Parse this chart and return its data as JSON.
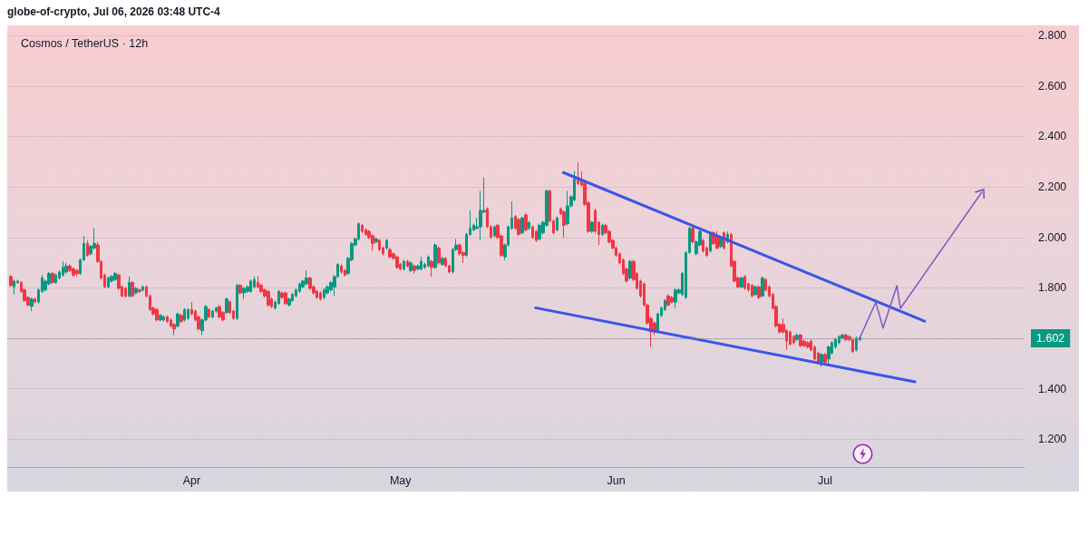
{
  "chart_data": {
    "type": "candlestick",
    "title": "Cosmos / TetherUS · 12h",
    "annotations": [
      "globe-of-crypto, Jul 06, 2026 03:48 UTC-4"
    ],
    "xlim": [
      "2026-03-05T12:00",
      "2026-07-29T16:00"
    ],
    "xticks": [
      {
        "value": "2026-04-01",
        "label": "Apr"
      },
      {
        "value": "2026-05-01",
        "label": "May"
      },
      {
        "value": "2026-06-01",
        "label": "Jun"
      },
      {
        "value": "2026-07-01",
        "label": "Jul"
      }
    ],
    "ylim": [
      1.09,
      2.84
    ],
    "yticks": [
      {
        "value": 1.2,
        "label": "1.200"
      },
      {
        "value": 1.4,
        "label": "1.400"
      },
      {
        "value": 1.6,
        "label": null
      },
      {
        "value": 1.8,
        "label": "1.800"
      },
      {
        "value": 2.0,
        "label": "2.000"
      },
      {
        "value": 2.2,
        "label": "2.200"
      },
      {
        "value": 2.4,
        "label": "2.400"
      },
      {
        "value": 2.6,
        "label": "2.600"
      },
      {
        "value": 2.8,
        "label": "2.800"
      }
    ],
    "grid": "y",
    "ref_lines": [
      {
        "axis": "y",
        "value": 1.602,
        "label": "1.602",
        "color": "#8a8a92",
        "line_style": "dotted"
      }
    ],
    "series": [
      {
        "type": "candlestick",
        "colors": [
          "#f23645",
          "#089981",
          "#089981",
          "#f23645",
          "#f23645",
          "#f23645",
          "#089981",
          "#f23645",
          "#089981",
          "#089981",
          "#089981",
          "#089981",
          "#f23645",
          "#089981",
          "#089981",
          "#089981",
          "#089981",
          "#f23645",
          "#f23645",
          "#f23645",
          "#089981",
          "#089981",
          "#f23645",
          "#089981",
          "#089981",
          "#f23645",
          "#f23645",
          "#f23645",
          "#089981",
          "#089981",
          "#089981",
          "#f23645",
          "#f23645",
          "#f23645",
          "#089981",
          "#f23645",
          "#089981",
          "#f23645",
          "#089981",
          "#f23645",
          "#f23645",
          "#f23645",
          "#f23645",
          "#089981",
          "#089981",
          "#f23645",
          "#f23645",
          "#f23645",
          "#089981",
          "#f23645",
          "#089981",
          "#089981",
          "#f23645",
          "#f23645",
          "#f23645",
          "#089981",
          "#089981",
          "#f23645",
          "#089981",
          "#089981",
          "#f23645",
          "#f23645",
          "#089981",
          "#f23645",
          "#f23645",
          "#089981",
          "#f23645",
          "#089981",
          "#089981",
          "#089981",
          "#089981",
          "#f23645",
          "#f23645",
          "#f23645",
          "#f23645",
          "#f23645",
          "#089981",
          "#089981",
          "#f23645",
          "#f23645",
          "#089981",
          "#089981",
          "#089981",
          "#089981",
          "#089981",
          "#089981",
          "#f23645",
          "#f23645",
          "#f23645",
          "#f23645",
          "#089981",
          "#089981",
          "#089981",
          "#089981",
          "#089981",
          "#f23645",
          "#f23645",
          "#089981",
          "#089981",
          "#089981",
          "#089981",
          "#f23645",
          "#f23645",
          "#f23645",
          "#f23645",
          "#089981",
          "#f23645",
          "#f23645",
          "#089981",
          "#f23645",
          "#f23645",
          "#f23645",
          "#f23645",
          "#089981",
          "#f23645",
          "#089981",
          "#f23645",
          "#089981",
          "#089981",
          "#089981",
          "#089981",
          "#f23645",
          "#089981",
          "#f23645",
          "#089981",
          "#f23645",
          "#f23645",
          "#089981",
          "#089981",
          "#f23645",
          "#f23645",
          "#089981",
          "#089981",
          "#089981",
          "#089981",
          "#089981",
          "#089981",
          "#f23645",
          "#f23645",
          "#089981",
          "#f23645",
          "#f23645",
          "#089981",
          "#089981",
          "#089981",
          "#f23645",
          "#f23645",
          "#089981",
          "#f23645",
          "#089981",
          "#f23645",
          "#f23645",
          "#089981",
          "#089981",
          "#089981",
          "#f23645",
          "#f23645",
          "#089981",
          "#f23645",
          "#f23645",
          "#089981",
          "#089981",
          "#089981",
          "#f23645",
          "#f23645",
          "#f23645",
          "#f23645",
          "#089981",
          "#f23645",
          "#f23645",
          "#089981",
          "#f23645",
          "#f23645",
          "#f23645",
          "#f23645",
          "#f23645",
          "#f23645",
          "#f23645",
          "#089981",
          "#f23645",
          "#f23645",
          "#f23645",
          "#f23645",
          "#f23645",
          "#f23645",
          "#f23645",
          "#089981",
          "#089981",
          "#089981",
          "#f23645",
          "#f23645",
          "#089981",
          "#089981",
          "#089981",
          "#089981",
          "#089981",
          "#f23645",
          "#089981",
          "#089981",
          "#f23645",
          "#f23645",
          "#089981",
          "#f23645",
          "#f23645",
          "#089981",
          "#f23645",
          "#089981",
          "#f23645",
          "#f23645",
          "#f23645",
          "#089981",
          "#f23645",
          "#f23645",
          "#f23645",
          "#089981",
          "#f23645",
          "#089981",
          "#f23645",
          "#f23645",
          "#f23645",
          "#f23645",
          "#f23645",
          "#f23645",
          "#f23645",
          "#f23645",
          "#f23645",
          "#089981",
          "#f23645",
          "#f23645",
          "#f23645",
          "#f23645",
          "#f23645",
          "#f23645",
          "#089981",
          "#f23645",
          "#089981",
          "#089981",
          "#089981",
          "#089981",
          "#089981",
          "#f23645",
          "#f23645",
          "#f23645",
          "#089981",
          "#089981"
        ],
        "x": [
          "2026-03-06T00:00",
          "2026-03-06T12:00",
          "2026-03-07T00:00",
          "2026-03-07T12:00",
          "2026-03-08T00:00",
          "2026-03-08T12:00",
          "2026-03-09T00:00",
          "2026-03-09T12:00",
          "2026-03-10T00:00",
          "2026-03-10T12:00",
          "2026-03-11T00:00",
          "2026-03-11T12:00",
          "2026-03-12T00:00",
          "2026-03-12T12:00",
          "2026-03-13T00:00",
          "2026-03-13T12:00",
          "2026-03-14T00:00",
          "2026-03-14T12:00",
          "2026-03-15T00:00",
          "2026-03-15T12:00",
          "2026-03-16T00:00",
          "2026-03-16T12:00",
          "2026-03-17T00:00",
          "2026-03-17T12:00",
          "2026-03-18T00:00",
          "2026-03-18T12:00",
          "2026-03-19T00:00",
          "2026-03-19T12:00",
          "2026-03-20T00:00",
          "2026-03-20T12:00",
          "2026-03-21T00:00",
          "2026-03-21T12:00",
          "2026-03-22T00:00",
          "2026-03-22T12:00",
          "2026-03-23T00:00",
          "2026-03-23T12:00",
          "2026-03-24T00:00",
          "2026-03-24T12:00",
          "2026-03-25T00:00",
          "2026-03-25T12:00",
          "2026-03-26T00:00",
          "2026-03-26T12:00",
          "2026-03-27T00:00",
          "2026-03-27T12:00",
          "2026-03-28T00:00",
          "2026-03-28T12:00",
          "2026-03-29T00:00",
          "2026-03-29T12:00",
          "2026-03-30T00:00",
          "2026-03-30T12:00",
          "2026-03-31T00:00",
          "2026-03-31T12:00",
          "2026-04-01T00:00",
          "2026-04-01T12:00",
          "2026-04-02T00:00",
          "2026-04-02T12:00",
          "2026-04-03T00:00",
          "2026-04-03T12:00",
          "2026-04-04T00:00",
          "2026-04-04T12:00",
          "2026-04-05T00:00",
          "2026-04-05T12:00",
          "2026-04-06T00:00",
          "2026-04-06T12:00",
          "2026-04-07T00:00",
          "2026-04-07T12:00",
          "2026-04-08T00:00",
          "2026-04-08T12:00",
          "2026-04-09T00:00",
          "2026-04-09T12:00",
          "2026-04-10T00:00",
          "2026-04-10T12:00",
          "2026-04-11T00:00",
          "2026-04-11T12:00",
          "2026-04-12T00:00",
          "2026-04-12T12:00",
          "2026-04-13T00:00",
          "2026-04-13T12:00",
          "2026-04-14T00:00",
          "2026-04-14T12:00",
          "2026-04-15T00:00",
          "2026-04-15T12:00",
          "2026-04-16T00:00",
          "2026-04-16T12:00",
          "2026-04-17T00:00",
          "2026-04-17T12:00",
          "2026-04-18T00:00",
          "2026-04-18T12:00",
          "2026-04-19T00:00",
          "2026-04-19T12:00",
          "2026-04-20T00:00",
          "2026-04-20T12:00",
          "2026-04-21T00:00",
          "2026-04-21T12:00",
          "2026-04-22T00:00",
          "2026-04-22T12:00",
          "2026-04-23T00:00",
          "2026-04-23T12:00",
          "2026-04-24T00:00",
          "2026-04-24T12:00",
          "2026-04-25T00:00",
          "2026-04-25T12:00",
          "2026-04-26T00:00",
          "2026-04-26T12:00",
          "2026-04-27T00:00",
          "2026-04-27T12:00",
          "2026-04-28T00:00",
          "2026-04-28T12:00",
          "2026-04-29T00:00",
          "2026-04-29T12:00",
          "2026-04-30T00:00",
          "2026-04-30T12:00",
          "2026-05-01T00:00",
          "2026-05-01T12:00",
          "2026-05-02T00:00",
          "2026-05-02T12:00",
          "2026-05-03T00:00",
          "2026-05-03T12:00",
          "2026-05-04T00:00",
          "2026-05-04T12:00",
          "2026-05-05T00:00",
          "2026-05-05T12:00",
          "2026-05-06T00:00",
          "2026-05-06T12:00",
          "2026-05-07T00:00",
          "2026-05-07T12:00",
          "2026-05-08T00:00",
          "2026-05-08T12:00",
          "2026-05-09T00:00",
          "2026-05-09T12:00",
          "2026-05-10T00:00",
          "2026-05-10T12:00",
          "2026-05-11T00:00",
          "2026-05-11T12:00",
          "2026-05-12T00:00",
          "2026-05-12T12:00",
          "2026-05-13T00:00",
          "2026-05-13T12:00",
          "2026-05-14T00:00",
          "2026-05-14T12:00",
          "2026-05-15T00:00",
          "2026-05-15T12:00",
          "2026-05-16T00:00",
          "2026-05-16T12:00",
          "2026-05-17T00:00",
          "2026-05-17T12:00",
          "2026-05-18T00:00",
          "2026-05-18T12:00",
          "2026-05-19T00:00",
          "2026-05-19T12:00",
          "2026-05-20T00:00",
          "2026-05-20T12:00",
          "2026-05-21T00:00",
          "2026-05-21T12:00",
          "2026-05-22T00:00",
          "2026-05-22T12:00",
          "2026-05-23T00:00",
          "2026-05-23T12:00",
          "2026-05-24T00:00",
          "2026-05-24T12:00",
          "2026-05-25T00:00",
          "2026-05-25T12:00",
          "2026-05-26T00:00",
          "2026-05-26T12:00",
          "2026-05-27T00:00",
          "2026-05-27T12:00",
          "2026-05-28T00:00",
          "2026-05-28T12:00",
          "2026-05-29T00:00",
          "2026-05-29T12:00",
          "2026-05-30T00:00",
          "2026-05-30T12:00",
          "2026-05-31T00:00",
          "2026-05-31T12:00",
          "2026-06-01T00:00",
          "2026-06-01T12:00",
          "2026-06-02T00:00",
          "2026-06-02T12:00",
          "2026-06-03T00:00",
          "2026-06-03T12:00",
          "2026-06-04T00:00",
          "2026-06-04T12:00",
          "2026-06-05T00:00",
          "2026-06-05T12:00",
          "2026-06-06T00:00",
          "2026-06-06T12:00",
          "2026-06-07T00:00",
          "2026-06-07T12:00",
          "2026-06-08T00:00",
          "2026-06-08T12:00",
          "2026-06-09T00:00",
          "2026-06-09T12:00",
          "2026-06-10T00:00",
          "2026-06-10T12:00",
          "2026-06-11T00:00",
          "2026-06-11T12:00",
          "2026-06-12T00:00",
          "2026-06-12T12:00",
          "2026-06-13T00:00",
          "2026-06-13T12:00",
          "2026-06-14T00:00",
          "2026-06-14T12:00",
          "2026-06-15T00:00",
          "2026-06-15T12:00",
          "2026-06-16T00:00",
          "2026-06-16T12:00",
          "2026-06-17T00:00",
          "2026-06-17T12:00",
          "2026-06-18T00:00",
          "2026-06-18T12:00",
          "2026-06-19T00:00",
          "2026-06-19T12:00",
          "2026-06-20T00:00",
          "2026-06-20T12:00",
          "2026-06-21T00:00",
          "2026-06-21T12:00",
          "2026-06-22T00:00",
          "2026-06-22T12:00",
          "2026-06-23T00:00",
          "2026-06-23T12:00",
          "2026-06-24T00:00",
          "2026-06-24T12:00",
          "2026-06-25T00:00",
          "2026-06-25T12:00",
          "2026-06-26T00:00",
          "2026-06-26T12:00",
          "2026-06-27T00:00",
          "2026-06-27T12:00",
          "2026-06-28T00:00",
          "2026-06-28T12:00",
          "2026-06-29T00:00",
          "2026-06-29T12:00",
          "2026-06-30T00:00",
          "2026-06-30T12:00",
          "2026-07-01T00:00",
          "2026-07-01T12:00",
          "2026-07-02T00:00",
          "2026-07-02T12:00",
          "2026-07-03T00:00",
          "2026-07-03T12:00",
          "2026-07-04T00:00",
          "2026-07-04T12:00",
          "2026-07-05T00:00",
          "2026-07-05T12:00",
          "2026-07-06T00:00"
        ],
        "ohlc": [
          [
            1.845,
            1.851,
            1.804,
            1.81
          ],
          [
            1.804,
            1.833,
            1.774,
            1.827
          ],
          [
            1.821,
            1.833,
            1.816,
            1.827
          ],
          [
            1.821,
            1.827,
            1.78,
            1.786
          ],
          [
            1.792,
            1.798,
            1.744,
            1.75
          ],
          [
            1.762,
            1.768,
            1.726,
            1.732
          ],
          [
            1.726,
            1.762,
            1.708,
            1.756
          ],
          [
            1.756,
            1.762,
            1.738,
            1.744
          ],
          [
            1.744,
            1.798,
            1.738,
            1.792
          ],
          [
            1.786,
            1.851,
            1.78,
            1.839
          ],
          [
            1.792,
            1.833,
            1.786,
            1.827
          ],
          [
            1.816,
            1.863,
            1.81,
            1.857
          ],
          [
            1.857,
            1.863,
            1.816,
            1.821
          ],
          [
            1.821,
            1.857,
            1.816,
            1.851
          ],
          [
            1.839,
            1.869,
            1.833,
            1.863
          ],
          [
            1.851,
            1.905,
            1.845,
            1.881
          ],
          [
            1.863,
            1.899,
            1.857,
            1.887
          ],
          [
            1.887,
            1.893,
            1.863,
            1.869
          ],
          [
            1.875,
            1.881,
            1.845,
            1.851
          ],
          [
            1.869,
            1.875,
            1.845,
            1.857
          ],
          [
            1.857,
            1.917,
            1.851,
            1.911
          ],
          [
            1.911,
            2.006,
            1.905,
            1.976
          ],
          [
            1.976,
            1.988,
            1.923,
            1.929
          ],
          [
            1.935,
            1.97,
            1.929,
            1.964
          ],
          [
            1.958,
            2.036,
            1.952,
            1.976
          ],
          [
            1.97,
            1.982,
            1.899,
            1.905
          ],
          [
            1.905,
            1.911,
            1.833,
            1.839
          ],
          [
            1.851,
            1.857,
            1.798,
            1.804
          ],
          [
            1.804,
            1.845,
            1.798,
            1.839
          ],
          [
            1.827,
            1.851,
            1.821,
            1.845
          ],
          [
            1.833,
            1.863,
            1.827,
            1.857
          ],
          [
            1.851,
            1.857,
            1.792,
            1.798
          ],
          [
            1.804,
            1.81,
            1.762,
            1.768
          ],
          [
            1.798,
            1.804,
            1.762,
            1.768
          ],
          [
            1.768,
            1.845,
            1.762,
            1.821
          ],
          [
            1.821,
            1.827,
            1.762,
            1.768
          ],
          [
            1.78,
            1.804,
            1.774,
            1.798
          ],
          [
            1.792,
            1.798,
            1.78,
            1.786
          ],
          [
            1.792,
            1.81,
            1.786,
            1.804
          ],
          [
            1.804,
            1.81,
            1.762,
            1.768
          ],
          [
            1.768,
            1.774,
            1.708,
            1.714
          ],
          [
            1.72,
            1.726,
            1.691,
            1.697
          ],
          [
            1.714,
            1.72,
            1.667,
            1.673
          ],
          [
            1.673,
            1.697,
            1.667,
            1.691
          ],
          [
            1.673,
            1.691,
            1.667,
            1.685
          ],
          [
            1.685,
            1.691,
            1.661,
            1.667
          ],
          [
            1.673,
            1.679,
            1.643,
            1.649
          ],
          [
            1.655,
            1.661,
            1.613,
            1.637
          ],
          [
            1.649,
            1.702,
            1.643,
            1.697
          ],
          [
            1.691,
            1.697,
            1.661,
            1.667
          ],
          [
            1.673,
            1.72,
            1.667,
            1.714
          ],
          [
            1.679,
            1.72,
            1.673,
            1.714
          ],
          [
            1.714,
            1.744,
            1.691,
            1.697
          ],
          [
            1.708,
            1.714,
            1.667,
            1.673
          ],
          [
            1.685,
            1.691,
            1.631,
            1.637
          ],
          [
            1.631,
            1.679,
            1.613,
            1.673
          ],
          [
            1.673,
            1.732,
            1.667,
            1.726
          ],
          [
            1.714,
            1.72,
            1.679,
            1.685
          ],
          [
            1.685,
            1.714,
            1.679,
            1.708
          ],
          [
            1.708,
            1.726,
            1.702,
            1.72
          ],
          [
            1.726,
            1.732,
            1.679,
            1.685
          ],
          [
            1.702,
            1.708,
            1.667,
            1.673
          ],
          [
            1.702,
            1.762,
            1.697,
            1.756
          ],
          [
            1.744,
            1.75,
            1.697,
            1.702
          ],
          [
            1.708,
            1.714,
            1.673,
            1.679
          ],
          [
            1.679,
            1.816,
            1.673,
            1.81
          ],
          [
            1.81,
            1.816,
            1.774,
            1.78
          ],
          [
            1.78,
            1.804,
            1.756,
            1.798
          ],
          [
            1.786,
            1.81,
            1.78,
            1.804
          ],
          [
            1.786,
            1.833,
            1.78,
            1.827
          ],
          [
            1.804,
            1.845,
            1.798,
            1.833
          ],
          [
            1.821,
            1.845,
            1.798,
            1.804
          ],
          [
            1.81,
            1.816,
            1.78,
            1.786
          ],
          [
            1.792,
            1.798,
            1.762,
            1.768
          ],
          [
            1.786,
            1.792,
            1.726,
            1.732
          ],
          [
            1.756,
            1.762,
            1.72,
            1.726
          ],
          [
            1.72,
            1.75,
            1.714,
            1.744
          ],
          [
            1.738,
            1.792,
            1.732,
            1.786
          ],
          [
            1.78,
            1.786,
            1.756,
            1.762
          ],
          [
            1.78,
            1.786,
            1.732,
            1.738
          ],
          [
            1.732,
            1.762,
            1.726,
            1.756
          ],
          [
            1.75,
            1.78,
            1.744,
            1.774
          ],
          [
            1.768,
            1.798,
            1.762,
            1.792
          ],
          [
            1.786,
            1.821,
            1.78,
            1.816
          ],
          [
            1.804,
            1.833,
            1.798,
            1.827
          ],
          [
            1.816,
            1.869,
            1.81,
            1.839
          ],
          [
            1.839,
            1.845,
            1.792,
            1.798
          ],
          [
            1.804,
            1.81,
            1.774,
            1.78
          ],
          [
            1.786,
            1.792,
            1.756,
            1.762
          ],
          [
            1.78,
            1.786,
            1.75,
            1.756
          ],
          [
            1.762,
            1.798,
            1.756,
            1.792
          ],
          [
            1.78,
            1.81,
            1.774,
            1.804
          ],
          [
            1.792,
            1.827,
            1.786,
            1.821
          ],
          [
            1.804,
            1.851,
            1.768,
            1.845
          ],
          [
            1.845,
            1.899,
            1.839,
            1.893
          ],
          [
            1.887,
            1.893,
            1.857,
            1.863
          ],
          [
            1.869,
            1.875,
            1.845,
            1.851
          ],
          [
            1.857,
            1.923,
            1.851,
            1.917
          ],
          [
            1.911,
            1.982,
            1.905,
            1.976
          ],
          [
            1.97,
            2.0,
            1.964,
            1.994
          ],
          [
            1.994,
            2.06,
            1.988,
            2.054
          ],
          [
            2.048,
            2.054,
            2.018,
            2.024
          ],
          [
            2.03,
            2.036,
            2.006,
            2.012
          ],
          [
            2.024,
            2.03,
            1.994,
            2.0
          ],
          [
            2.006,
            2.012,
            1.946,
            1.976
          ],
          [
            1.982,
            2.0,
            1.976,
            1.994
          ],
          [
            1.988,
            1.994,
            1.946,
            1.952
          ],
          [
            1.958,
            1.964,
            1.929,
            1.935
          ],
          [
            1.958,
            1.994,
            1.952,
            1.988
          ],
          [
            1.952,
            1.958,
            1.917,
            1.923
          ],
          [
            1.935,
            1.94,
            1.911,
            1.917
          ],
          [
            1.923,
            1.929,
            1.875,
            1.881
          ],
          [
            1.893,
            1.899,
            1.869,
            1.875
          ],
          [
            1.875,
            1.911,
            1.869,
            1.905
          ],
          [
            1.905,
            1.911,
            1.881,
            1.887
          ],
          [
            1.869,
            1.905,
            1.863,
            1.899
          ],
          [
            1.887,
            1.893,
            1.857,
            1.869
          ],
          [
            1.875,
            1.893,
            1.869,
            1.887
          ],
          [
            1.875,
            1.923,
            1.869,
            1.905
          ],
          [
            1.881,
            1.899,
            1.875,
            1.893
          ],
          [
            1.887,
            1.929,
            1.881,
            1.923
          ],
          [
            1.905,
            1.911,
            1.845,
            1.881
          ],
          [
            1.881,
            1.976,
            1.875,
            1.97
          ],
          [
            1.958,
            1.964,
            1.893,
            1.899
          ],
          [
            1.893,
            1.923,
            1.887,
            1.917
          ],
          [
            1.917,
            1.923,
            1.881,
            1.887
          ],
          [
            1.887,
            1.893,
            1.857,
            1.863
          ],
          [
            1.863,
            1.958,
            1.857,
            1.952
          ],
          [
            1.952,
            1.994,
            1.946,
            1.97
          ],
          [
            1.97,
            1.976,
            1.929,
            1.935
          ],
          [
            1.94,
            1.946,
            1.899,
            1.929
          ],
          [
            1.929,
            2.018,
            1.923,
            2.012
          ],
          [
            2.012,
            2.107,
            2.006,
            2.036
          ],
          [
            2.03,
            2.054,
            2.024,
            2.048
          ],
          [
            2.036,
            2.077,
            2.03,
            2.042
          ],
          [
            2.042,
            2.184,
            1.988,
            2.107
          ],
          [
            2.101,
            2.238,
            2.095,
            2.107
          ],
          [
            2.113,
            2.119,
            2.036,
            2.042
          ],
          [
            2.042,
            2.048,
            1.994,
            2.0
          ],
          [
            2.006,
            2.048,
            2.0,
            2.042
          ],
          [
            2.048,
            2.054,
            1.994,
            2.0
          ],
          [
            2.006,
            2.012,
            1.923,
            1.929
          ],
          [
            1.923,
            1.976,
            1.911,
            1.97
          ],
          [
            1.97,
            2.048,
            1.964,
            2.042
          ],
          [
            2.036,
            2.143,
            2.03,
            2.077
          ],
          [
            2.083,
            2.089,
            2.03,
            2.036
          ],
          [
            2.071,
            2.077,
            2.006,
            2.012
          ],
          [
            2.018,
            2.083,
            2.012,
            2.077
          ],
          [
            2.089,
            2.095,
            2.024,
            2.03
          ],
          [
            2.036,
            2.065,
            2.03,
            2.06
          ],
          [
            2.042,
            2.048,
            1.994,
            2.0
          ],
          [
            2.024,
            2.03,
            1.982,
            1.988
          ],
          [
            1.994,
            2.054,
            1.988,
            2.048
          ],
          [
            2.018,
            2.065,
            2.012,
            2.06
          ],
          [
            2.048,
            2.19,
            2.042,
            2.184
          ],
          [
            2.184,
            2.19,
            2.06,
            2.065
          ],
          [
            2.065,
            2.071,
            2.012,
            2.018
          ],
          [
            2.03,
            2.083,
            2.024,
            2.077
          ],
          [
            2.113,
            2.119,
            2.089,
            2.095
          ],
          [
            2.101,
            2.107,
            2.0,
            2.048
          ],
          [
            2.054,
            2.184,
            2.048,
            2.125
          ],
          [
            2.125,
            2.167,
            2.119,
            2.161
          ],
          [
            2.149,
            2.262,
            2.143,
            2.232
          ],
          [
            2.238,
            2.298,
            2.208,
            2.214
          ],
          [
            2.226,
            2.262,
            2.202,
            2.208
          ],
          [
            2.214,
            2.22,
            2.125,
            2.131
          ],
          [
            2.137,
            2.143,
            2.018,
            2.024
          ],
          [
            2.024,
            2.065,
            2.018,
            2.06
          ],
          [
            2.107,
            2.113,
            2.018,
            2.024
          ],
          [
            2.06,
            2.065,
            1.97,
            2.012
          ],
          [
            2.012,
            2.054,
            2.006,
            2.048
          ],
          [
            2.048,
            2.054,
            2.012,
            2.018
          ],
          [
            2.024,
            2.03,
            1.976,
            1.982
          ],
          [
            1.988,
            1.994,
            1.952,
            1.958
          ],
          [
            1.958,
            1.964,
            1.923,
            1.929
          ],
          [
            1.935,
            1.94,
            1.893,
            1.899
          ],
          [
            1.911,
            1.917,
            1.851,
            1.857
          ],
          [
            1.875,
            1.881,
            1.821,
            1.827
          ],
          [
            1.839,
            1.911,
            1.833,
            1.905
          ],
          [
            1.905,
            1.911,
            1.827,
            1.833
          ],
          [
            1.857,
            1.863,
            1.792,
            1.798
          ],
          [
            1.827,
            1.833,
            1.762,
            1.768
          ],
          [
            1.816,
            1.821,
            1.726,
            1.732
          ],
          [
            1.732,
            1.738,
            1.655,
            1.661
          ],
          [
            1.679,
            1.685,
            1.566,
            1.625
          ],
          [
            1.661,
            1.667,
            1.613,
            1.625
          ],
          [
            1.631,
            1.702,
            1.619,
            1.697
          ],
          [
            1.691,
            1.726,
            1.685,
            1.72
          ],
          [
            1.714,
            1.756,
            1.708,
            1.75
          ],
          [
            1.768,
            1.774,
            1.726,
            1.732
          ],
          [
            1.762,
            1.768,
            1.738,
            1.744
          ],
          [
            1.744,
            1.798,
            1.72,
            1.792
          ],
          [
            1.78,
            1.798,
            1.774,
            1.792
          ],
          [
            1.774,
            1.863,
            1.768,
            1.857
          ],
          [
            1.762,
            1.946,
            1.756,
            1.94
          ],
          [
            1.94,
            2.042,
            1.935,
            2.036
          ],
          [
            2.036,
            2.042,
            1.976,
            1.982
          ],
          [
            1.935,
            1.988,
            1.929,
            1.982
          ],
          [
            1.97,
            2.03,
            1.964,
            2.024
          ],
          [
            1.988,
            1.994,
            1.94,
            1.946
          ],
          [
            1.958,
            1.964,
            1.923,
            1.929
          ],
          [
            1.946,
            2.024,
            1.94,
            2.012
          ],
          [
            2.018,
            2.024,
            1.97,
            1.976
          ],
          [
            2.006,
            2.024,
            1.952,
            1.958
          ],
          [
            1.964,
            2.006,
            1.958,
            2.0
          ],
          [
            2.018,
            2.024,
            1.952,
            1.958
          ],
          [
            1.982,
            2.024,
            1.976,
            2.012
          ],
          [
            2.012,
            2.018,
            1.881,
            1.887
          ],
          [
            1.905,
            1.911,
            1.821,
            1.827
          ],
          [
            1.839,
            1.845,
            1.798,
            1.804
          ],
          [
            1.804,
            1.845,
            1.798,
            1.839
          ],
          [
            1.845,
            1.851,
            1.792,
            1.798
          ],
          [
            1.816,
            1.821,
            1.786,
            1.792
          ],
          [
            1.81,
            1.816,
            1.762,
            1.768
          ],
          [
            1.774,
            1.81,
            1.768,
            1.804
          ],
          [
            1.804,
            1.81,
            1.756,
            1.762
          ],
          [
            1.768,
            1.845,
            1.762,
            1.839
          ],
          [
            1.833,
            1.839,
            1.786,
            1.792
          ],
          [
            1.804,
            1.81,
            1.762,
            1.768
          ],
          [
            1.774,
            1.78,
            1.714,
            1.72
          ],
          [
            1.726,
            1.732,
            1.643,
            1.649
          ],
          [
            1.655,
            1.661,
            1.619,
            1.625
          ],
          [
            1.655,
            1.679,
            1.619,
            1.625
          ],
          [
            1.631,
            1.637,
            1.554,
            1.589
          ],
          [
            1.625,
            1.631,
            1.571,
            1.577
          ],
          [
            1.607,
            1.613,
            1.577,
            1.583
          ],
          [
            1.595,
            1.619,
            1.589,
            1.613
          ],
          [
            1.613,
            1.619,
            1.566,
            1.571
          ],
          [
            1.589,
            1.595,
            1.566,
            1.571
          ],
          [
            1.583,
            1.589,
            1.56,
            1.566
          ],
          [
            1.589,
            1.595,
            1.548,
            1.554
          ],
          [
            1.566,
            1.571,
            1.512,
            1.518
          ],
          [
            1.542,
            1.548,
            1.5,
            1.506
          ],
          [
            1.506,
            1.542,
            1.488,
            1.536
          ],
          [
            1.536,
            1.542,
            1.5,
            1.506
          ],
          [
            1.518,
            1.571,
            1.494,
            1.566
          ],
          [
            1.542,
            1.589,
            1.536,
            1.583
          ],
          [
            1.566,
            1.601,
            1.56,
            1.595
          ],
          [
            1.583,
            1.613,
            1.577,
            1.607
          ],
          [
            1.601,
            1.619,
            1.595,
            1.613
          ],
          [
            1.613,
            1.619,
            1.589,
            1.595
          ],
          [
            1.607,
            1.613,
            1.589,
            1.595
          ],
          [
            1.595,
            1.601,
            1.542,
            1.548
          ],
          [
            1.554,
            1.607,
            1.548,
            1.601
          ],
          [
            1.595,
            1.61,
            1.589,
            1.602
          ]
        ]
      },
      {
        "type": "line",
        "color": "#3b55e6",
        "x": [
          "2026-05-24T10:00",
          "2026-07-15T07:00"
        ],
        "values": [
          2.257,
          1.668
        ]
      },
      {
        "type": "line",
        "color": "#3b55e6",
        "x": [
          "2026-05-20T10:00",
          "2026-07-13T22:00"
        ],
        "values": [
          1.721,
          1.428
        ]
      },
      {
        "type": "line",
        "color": "#7e57c2",
        "x": [
          "2026-07-06T00:00",
          "2026-07-08T07:00",
          "2026-07-09T08:00",
          "2026-07-11T08:00",
          "2026-07-11T20:00",
          "2026-07-23T12:00"
        ],
        "values": [
          1.602,
          1.743,
          1.641,
          1.809,
          1.719,
          2.178
        ]
      }
    ]
  }
}
